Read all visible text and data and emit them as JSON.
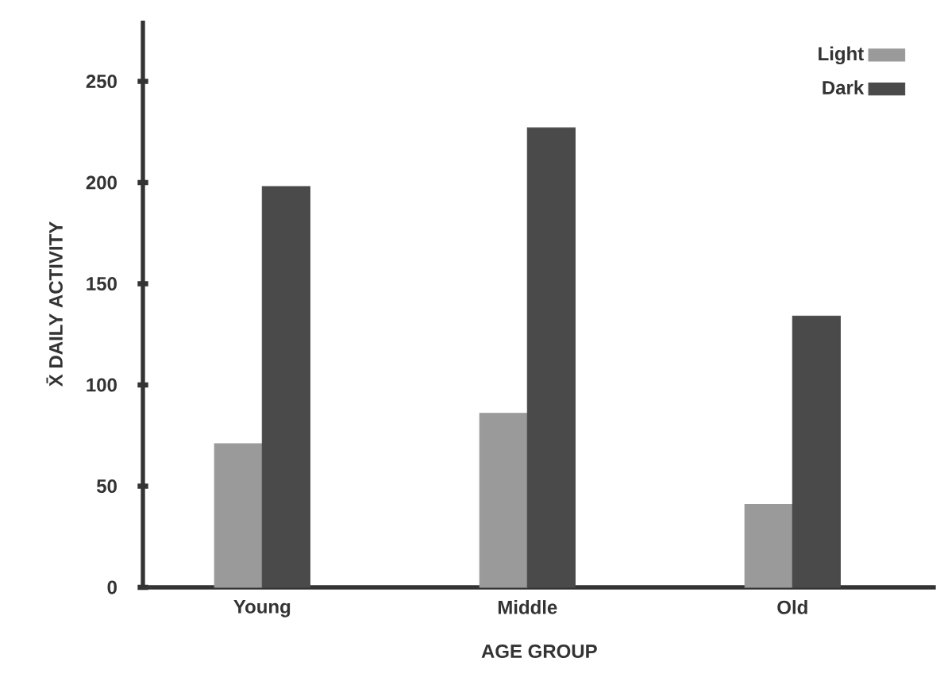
{
  "chart_data": {
    "type": "bar",
    "xlabel": "AGE GROUP",
    "ylabel": "X̄ DAILY ACTIVITY",
    "categories": [
      "Young",
      "Middle",
      "Old"
    ],
    "series": [
      {
        "name": "Light",
        "color": "#9a9a9a",
        "values": [
          71,
          86,
          41
        ]
      },
      {
        "name": "Dark",
        "color": "#4a4a4a",
        "values": [
          198,
          227,
          134
        ]
      }
    ],
    "ylim": [
      0,
      280
    ],
    "yticks": [
      0,
      50,
      100,
      150,
      200,
      250
    ],
    "legend": "top right"
  }
}
